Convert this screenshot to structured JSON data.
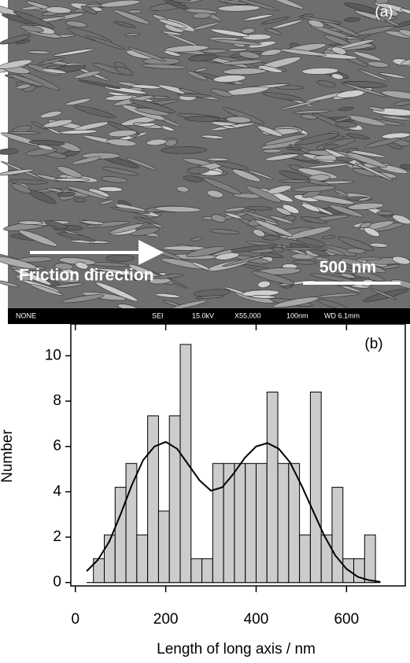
{
  "image_panel": {
    "label": "(a)",
    "arrow_text": "Friction direction",
    "scale_bar": "500 nm",
    "info_bar": [
      "NONE",
      "SEI",
      "15.0kV",
      "X55,000",
      "100nm",
      "WD 6.1mm"
    ]
  },
  "chart_data": {
    "type": "histogram",
    "annotation": "(b)",
    "x_label": "Length of long axis / nm",
    "y_label": "Number",
    "bins": [
      40,
      64,
      88,
      112,
      136,
      160,
      184,
      208,
      232,
      256,
      280,
      304,
      328,
      352,
      376,
      400,
      424,
      448,
      472,
      496,
      520,
      544,
      568,
      592,
      616,
      640,
      664
    ],
    "values": [
      1.05,
      2.1,
      4.2,
      5.25,
      2.1,
      7.35,
      3.15,
      7.35,
      10.5,
      1.05,
      1.05,
      5.25,
      5.25,
      5.25,
      5.25,
      5.25,
      8.4,
      5.25,
      5.25,
      2.1,
      8.4,
      2.1,
      4.2,
      1.05,
      1.05,
      2.1
    ],
    "color": "#cccccc",
    "fit": {
      "color": "#000000",
      "x": [
        25,
        50,
        75,
        100,
        125,
        150,
        175,
        200,
        225,
        250,
        275,
        300,
        325,
        350,
        375,
        400,
        425,
        450,
        475,
        500,
        525,
        550,
        575,
        600,
        625,
        650,
        675
      ],
      "values": [
        0.5,
        1.0,
        1.8,
        3.0,
        4.3,
        5.4,
        6.0,
        6.2,
        5.9,
        5.2,
        4.5,
        4.05,
        4.2,
        4.8,
        5.5,
        6.0,
        6.15,
        5.9,
        5.3,
        4.3,
        3.2,
        2.1,
        1.2,
        0.6,
        0.25,
        0.1,
        0.03
      ]
    },
    "xlim": [
      -10,
      730
    ],
    "ylim": [
      -0.15,
      11.4
    ],
    "xticks": [
      0,
      200,
      400,
      600
    ],
    "yticks": [
      0,
      2,
      4,
      6,
      8,
      10
    ]
  }
}
